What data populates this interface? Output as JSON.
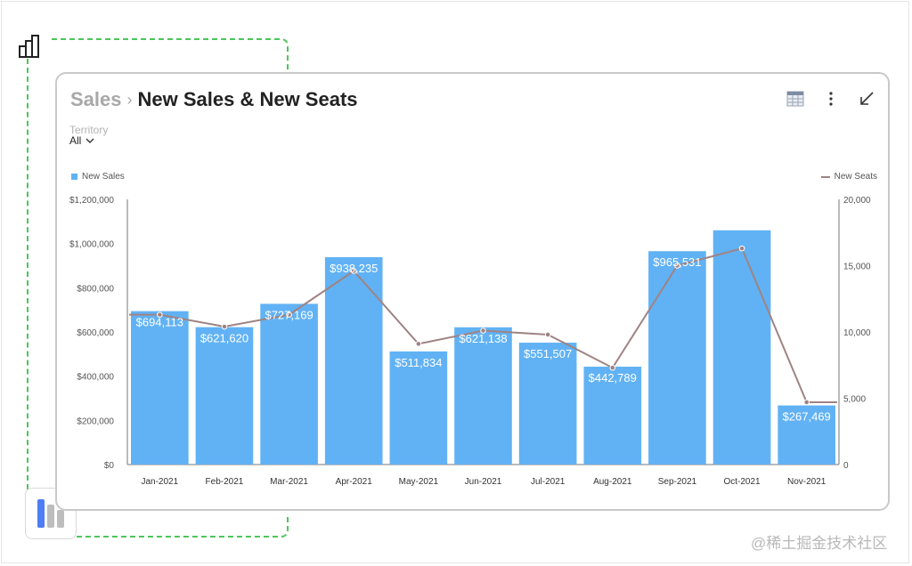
{
  "header": {
    "breadcrumb": "Sales",
    "separator": "›",
    "title": "New Sales & New Seats"
  },
  "filter": {
    "label": "Territory",
    "value": "All"
  },
  "icons": {
    "top_left": "bar-chart-outline-icon",
    "bottom_left": "bar-chart-app-icon",
    "table_view": "table-view-icon",
    "more": "more-vertical-icon",
    "collapse": "arrow-collapse-icon",
    "filter_dropdown": "chevron-down-icon"
  },
  "colors": {
    "bar": "#61b2f4",
    "line": "#9f8383",
    "accent_dash": "#4cc65a"
  },
  "watermark": "@稀土掘金技术社区",
  "chart_data": {
    "type": "bar",
    "categories": [
      "Jan-2021",
      "Feb-2021",
      "Mar-2021",
      "Apr-2021",
      "May-2021",
      "Jun-2021",
      "Jul-2021",
      "Aug-2021",
      "Sep-2021",
      "Oct-2021",
      "Nov-2021"
    ],
    "series": [
      {
        "name": "New Sales",
        "type": "bar",
        "axis": "left",
        "values": [
          694113,
          621620,
          727169,
          938235,
          511834,
          621138,
          551507,
          442789,
          965531,
          1060000,
          267469
        ],
        "labels": [
          "$694,113",
          "$621,620",
          "$727,169",
          "$938,235",
          "$511,834",
          "$621,138",
          "$551,507",
          "$442,789",
          "$965,531",
          "",
          "$267,469"
        ]
      },
      {
        "name": "New Seats",
        "type": "line",
        "axis": "right",
        "values": [
          11300,
          10400,
          11300,
          14600,
          9100,
          10100,
          9800,
          7300,
          15000,
          16300,
          4700
        ]
      }
    ],
    "y_left": {
      "min": 0,
      "max": 1200000,
      "ticks": [
        0,
        200000,
        400000,
        600000,
        800000,
        1000000,
        1200000
      ],
      "tick_labels": [
        "$0",
        "$200,000",
        "$400,000",
        "$600,000",
        "$800,000",
        "$1,000,000",
        "$1,200,000"
      ]
    },
    "y_right": {
      "min": 0,
      "max": 20000,
      "ticks": [
        0,
        5000,
        10000,
        15000,
        20000
      ],
      "tick_labels": [
        "0",
        "5,000",
        "10,000",
        "15,000",
        "20,000"
      ]
    },
    "legend": {
      "left": "New Sales",
      "right": "New Seats"
    },
    "grid": false
  }
}
